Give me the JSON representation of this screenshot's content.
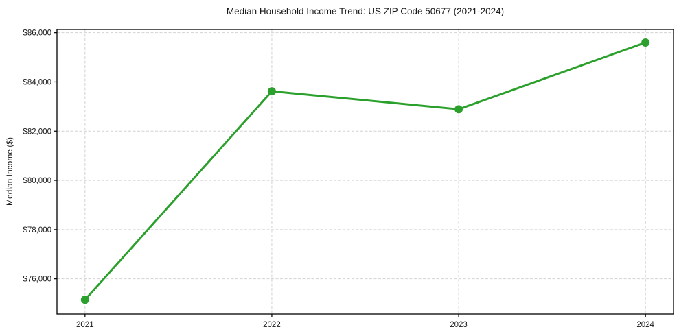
{
  "chart_data": {
    "type": "line",
    "title": "Median Household Income Trend: US ZIP Code 50677 (2021-2024)",
    "xlabel": "",
    "ylabel": "Median Income ($)",
    "x": [
      2021,
      2022,
      2023,
      2024
    ],
    "xtick_labels": [
      "2021",
      "2022",
      "2023",
      "2024"
    ],
    "values": [
      75150,
      83620,
      82890,
      85600
    ],
    "yticks": [
      76000,
      78000,
      80000,
      82000,
      84000,
      86000
    ],
    "ytick_labels": [
      "$76,000",
      "$78,000",
      "$80,000",
      "$82,000",
      "$84,000",
      "$86,000"
    ],
    "xlim": [
      2020.85,
      2024.15
    ],
    "ylim": [
      74570,
      86130
    ],
    "grid": true,
    "grid_style": "dashed",
    "legend": "none",
    "line_color": "#2ca02c",
    "marker": "circle",
    "marker_radius": 6,
    "line_width": 3,
    "grid_color": "#d2d2d2",
    "spine_color": "#000000",
    "background_color": "#ffffff",
    "text_color": "#1a1a1a"
  }
}
